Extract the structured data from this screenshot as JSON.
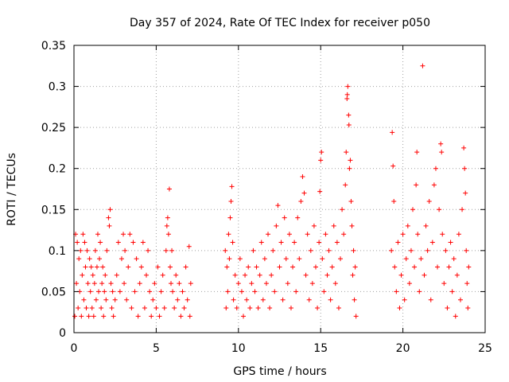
{
  "chart_data": {
    "type": "scatter",
    "title": "Day 357 of 2024, Rate Of TEC Index for receiver p050",
    "xlabel": "GPS time / hours",
    "ylabel": "ROTI / TECUs",
    "xlim": [
      0,
      25
    ],
    "ylim": [
      0,
      0.35
    ],
    "xticks": [
      0,
      5,
      10,
      15,
      20,
      25
    ],
    "xtick_labels": [
      "0",
      "5",
      "10",
      "15",
      "20",
      "25"
    ],
    "yticks": [
      0,
      0.05,
      0.1,
      0.15,
      0.2,
      0.25,
      0.3,
      0.35
    ],
    "ytick_labels": [
      "0",
      "0.05",
      "0.1",
      "0.15",
      "0.2",
      "0.25",
      "0.3",
      "0.35"
    ],
    "grid": true,
    "marker": "+",
    "color": "#ff0000",
    "series": [
      {
        "name": "ROTI",
        "points": [
          [
            0.05,
            0.02
          ],
          [
            0.1,
            0.12
          ],
          [
            0.15,
            0.06
          ],
          [
            0.2,
            0.11
          ],
          [
            0.25,
            0.03
          ],
          [
            0.3,
            0.09
          ],
          [
            0.35,
            0.05
          ],
          [
            0.4,
            0.1
          ],
          [
            0.45,
            0.02
          ],
          [
            0.5,
            0.07
          ],
          [
            0.55,
            0.12
          ],
          [
            0.6,
            0.04
          ],
          [
            0.65,
            0.11
          ],
          [
            0.7,
            0.08
          ],
          [
            0.75,
            0.03
          ],
          [
            0.8,
            0.1
          ],
          [
            0.85,
            0.06
          ],
          [
            0.9,
            0.02
          ],
          [
            0.95,
            0.09
          ],
          [
            1.0,
            0.05
          ],
          [
            1.05,
            0.08
          ],
          [
            1.1,
            0.03
          ],
          [
            1.15,
            0.07
          ],
          [
            1.2,
            0.02
          ],
          [
            1.25,
            0.06
          ],
          [
            1.3,
            0.1
          ],
          [
            1.35,
            0.04
          ],
          [
            1.4,
            0.08
          ],
          [
            1.45,
            0.12
          ],
          [
            1.5,
            0.05
          ],
          [
            1.55,
            0.09
          ],
          [
            1.6,
            0.11
          ],
          [
            1.65,
            0.03
          ],
          [
            1.7,
            0.06
          ],
          [
            1.75,
            0.08
          ],
          [
            1.8,
            0.02
          ],
          [
            1.85,
            0.05
          ],
          [
            1.9,
            0.07
          ],
          [
            1.95,
            0.04
          ],
          [
            2.0,
            0.1
          ],
          [
            2.1,
            0.14
          ],
          [
            2.15,
            0.13
          ],
          [
            2.2,
            0.15
          ],
          [
            2.25,
            0.06
          ],
          [
            2.3,
            0.03
          ],
          [
            2.35,
            0.05
          ],
          [
            2.4,
            0.02
          ],
          [
            2.5,
            0.04
          ],
          [
            2.6,
            0.07
          ],
          [
            2.7,
            0.11
          ],
          [
            2.8,
            0.05
          ],
          [
            2.9,
            0.09
          ],
          [
            3.0,
            0.12
          ],
          [
            3.05,
            0.06
          ],
          [
            3.1,
            0.1
          ],
          [
            3.2,
            0.04
          ],
          [
            3.3,
            0.08
          ],
          [
            3.4,
            0.12
          ],
          [
            3.5,
            0.03
          ],
          [
            3.6,
            0.11
          ],
          [
            3.7,
            0.05
          ],
          [
            3.8,
            0.09
          ],
          [
            3.9,
            0.02
          ],
          [
            4.0,
            0.06
          ],
          [
            4.1,
            0.08
          ],
          [
            4.2,
            0.11
          ],
          [
            4.3,
            0.03
          ],
          [
            4.4,
            0.07
          ],
          [
            4.5,
            0.1
          ],
          [
            4.6,
            0.05
          ],
          [
            4.7,
            0.02
          ],
          [
            4.8,
            0.04
          ],
          [
            4.9,
            0.06
          ],
          [
            5.0,
            0.03
          ],
          [
            5.1,
            0.08
          ],
          [
            5.2,
            0.02
          ],
          [
            5.3,
            0.05
          ],
          [
            5.4,
            0.07
          ],
          [
            5.5,
            0.03
          ],
          [
            5.6,
            0.1
          ],
          [
            5.65,
            0.13
          ],
          [
            5.7,
            0.14
          ],
          [
            5.75,
            0.12
          ],
          [
            5.8,
            0.175
          ],
          [
            5.85,
            0.08
          ],
          [
            5.9,
            0.06
          ],
          [
            5.95,
            0.1
          ],
          [
            6.0,
            0.05
          ],
          [
            6.1,
            0.03
          ],
          [
            6.2,
            0.07
          ],
          [
            6.3,
            0.04
          ],
          [
            6.4,
            0.06
          ],
          [
            6.5,
            0.02
          ],
          [
            6.6,
            0.05
          ],
          [
            6.7,
            0.03
          ],
          [
            6.8,
            0.08
          ],
          [
            6.9,
            0.04
          ],
          [
            7.0,
            0.105
          ],
          [
            7.05,
            0.02
          ],
          [
            7.1,
            0.06
          ],
          [
            9.2,
            0.1
          ],
          [
            9.25,
            0.03
          ],
          [
            9.3,
            0.08
          ],
          [
            9.35,
            0.05
          ],
          [
            9.4,
            0.12
          ],
          [
            9.45,
            0.09
          ],
          [
            9.5,
            0.14
          ],
          [
            9.55,
            0.16
          ],
          [
            9.6,
            0.178
          ],
          [
            9.65,
            0.11
          ],
          [
            9.7,
            0.04
          ],
          [
            9.8,
            0.07
          ],
          [
            9.9,
            0.03
          ],
          [
            10.0,
            0.06
          ],
          [
            10.1,
            0.09
          ],
          [
            10.2,
            0.05
          ],
          [
            10.3,
            0.02
          ],
          [
            10.4,
            0.07
          ],
          [
            10.5,
            0.04
          ],
          [
            10.6,
            0.08
          ],
          [
            10.7,
            0.03
          ],
          [
            10.8,
            0.06
          ],
          [
            10.9,
            0.1
          ],
          [
            11.0,
            0.05
          ],
          [
            11.1,
            0.08
          ],
          [
            11.2,
            0.03
          ],
          [
            11.3,
            0.07
          ],
          [
            11.4,
            0.11
          ],
          [
            11.5,
            0.04
          ],
          [
            11.6,
            0.09
          ],
          [
            11.7,
            0.06
          ],
          [
            11.8,
            0.12
          ],
          [
            11.9,
            0.03
          ],
          [
            12.0,
            0.07
          ],
          [
            12.1,
            0.1
          ],
          [
            12.2,
            0.05
          ],
          [
            12.3,
            0.13
          ],
          [
            12.4,
            0.155
          ],
          [
            12.5,
            0.08
          ],
          [
            12.6,
            0.11
          ],
          [
            12.7,
            0.04
          ],
          [
            12.8,
            0.14
          ],
          [
            12.9,
            0.09
          ],
          [
            13.0,
            0.06
          ],
          [
            13.1,
            0.12
          ],
          [
            13.2,
            0.03
          ],
          [
            13.3,
            0.08
          ],
          [
            13.4,
            0.11
          ],
          [
            13.5,
            0.05
          ],
          [
            13.6,
            0.14
          ],
          [
            13.7,
            0.09
          ],
          [
            13.8,
            0.16
          ],
          [
            13.9,
            0.19
          ],
          [
            14.0,
            0.17
          ],
          [
            14.1,
            0.07
          ],
          [
            14.2,
            0.12
          ],
          [
            14.3,
            0.04
          ],
          [
            14.4,
            0.1
          ],
          [
            14.5,
            0.06
          ],
          [
            14.6,
            0.13
          ],
          [
            14.7,
            0.08
          ],
          [
            14.8,
            0.03
          ],
          [
            14.9,
            0.11
          ],
          [
            14.95,
            0.172
          ],
          [
            15.0,
            0.21
          ],
          [
            15.05,
            0.22
          ],
          [
            15.1,
            0.09
          ],
          [
            15.2,
            0.05
          ],
          [
            15.3,
            0.12
          ],
          [
            15.4,
            0.07
          ],
          [
            15.5,
            0.1
          ],
          [
            15.6,
            0.04
          ],
          [
            15.7,
            0.08
          ],
          [
            15.8,
            0.13
          ],
          [
            15.9,
            0.06
          ],
          [
            16.0,
            0.11
          ],
          [
            16.1,
            0.03
          ],
          [
            16.2,
            0.09
          ],
          [
            16.3,
            0.15
          ],
          [
            16.4,
            0.12
          ],
          [
            16.5,
            0.18
          ],
          [
            16.55,
            0.22
          ],
          [
            16.6,
            0.285
          ],
          [
            16.62,
            0.29
          ],
          [
            16.65,
            0.3
          ],
          [
            16.7,
            0.265
          ],
          [
            16.72,
            0.253
          ],
          [
            16.75,
            0.2
          ],
          [
            16.8,
            0.21
          ],
          [
            16.85,
            0.16
          ],
          [
            16.9,
            0.13
          ],
          [
            16.95,
            0.07
          ],
          [
            17.0,
            0.1
          ],
          [
            17.05,
            0.04
          ],
          [
            17.1,
            0.08
          ],
          [
            17.15,
            0.02
          ],
          [
            19.3,
            0.1
          ],
          [
            19.35,
            0.244
          ],
          [
            19.4,
            0.203
          ],
          [
            19.45,
            0.16
          ],
          [
            19.5,
            0.08
          ],
          [
            19.6,
            0.05
          ],
          [
            19.7,
            0.11
          ],
          [
            19.8,
            0.03
          ],
          [
            19.9,
            0.07
          ],
          [
            20.0,
            0.12
          ],
          [
            20.1,
            0.04
          ],
          [
            20.2,
            0.09
          ],
          [
            20.3,
            0.13
          ],
          [
            20.4,
            0.06
          ],
          [
            20.5,
            0.1
          ],
          [
            20.6,
            0.15
          ],
          [
            20.7,
            0.08
          ],
          [
            20.8,
            0.18
          ],
          [
            20.85,
            0.22
          ],
          [
            20.9,
            0.12
          ],
          [
            21.0,
            0.05
          ],
          [
            21.1,
            0.09
          ],
          [
            21.2,
            0.325
          ],
          [
            21.3,
            0.07
          ],
          [
            21.4,
            0.13
          ],
          [
            21.5,
            0.1
          ],
          [
            21.6,
            0.16
          ],
          [
            21.7,
            0.04
          ],
          [
            21.8,
            0.11
          ],
          [
            21.9,
            0.18
          ],
          [
            22.0,
            0.2
          ],
          [
            22.1,
            0.08
          ],
          [
            22.2,
            0.15
          ],
          [
            22.3,
            0.23
          ],
          [
            22.35,
            0.22
          ],
          [
            22.4,
            0.12
          ],
          [
            22.5,
            0.06
          ],
          [
            22.6,
            0.1
          ],
          [
            22.7,
            0.03
          ],
          [
            22.8,
            0.08
          ],
          [
            22.9,
            0.11
          ],
          [
            23.0,
            0.05
          ],
          [
            23.1,
            0.09
          ],
          [
            23.2,
            0.02
          ],
          [
            23.3,
            0.07
          ],
          [
            23.4,
            0.12
          ],
          [
            23.5,
            0.04
          ],
          [
            23.6,
            0.15
          ],
          [
            23.7,
            0.225
          ],
          [
            23.75,
            0.2
          ],
          [
            23.8,
            0.17
          ],
          [
            23.85,
            0.1
          ],
          [
            23.9,
            0.06
          ],
          [
            23.95,
            0.03
          ],
          [
            24.0,
            0.08
          ]
        ]
      }
    ]
  }
}
